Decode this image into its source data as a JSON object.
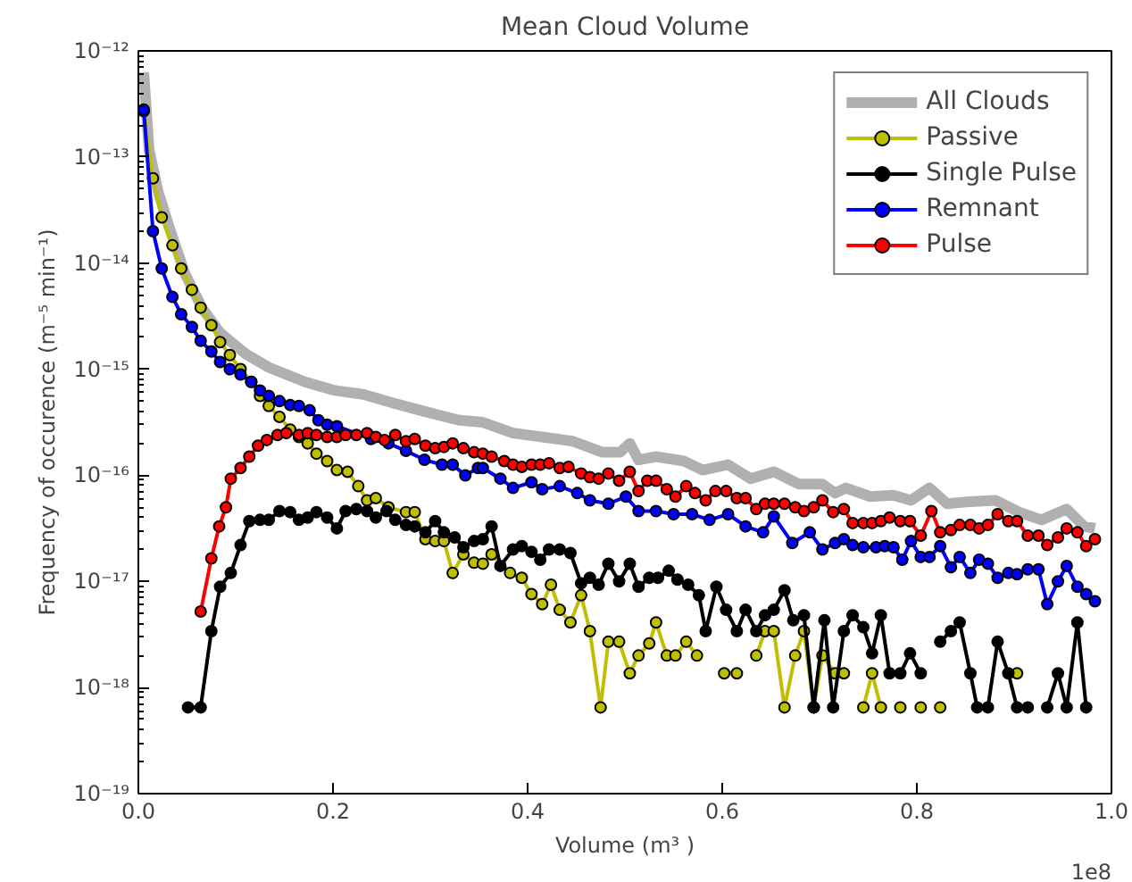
{
  "chart_data": {
    "type": "line",
    "title": "Mean Cloud Volume",
    "xlabel": "Volume (m³ )",
    "ylabel": "Frequency of occurence (m⁻⁵ min⁻¹)",
    "log": "y",
    "grid": false,
    "legend": "top right",
    "xlim": [
      0,
      1
    ],
    "xticks": [
      {
        "value": 0,
        "label": "0.0"
      },
      0.2,
      0.4,
      0.6,
      0.8,
      {
        "value": 1,
        "label": "1.0"
      }
    ],
    "ylim": [
      1e-19,
      1e-12
    ],
    "yticks": [
      {
        "value": 1e-19,
        "label": "10⁻¹⁹"
      },
      {
        "value": 1e-18,
        "label": "10⁻¹⁸"
      },
      {
        "value": 1e-17,
        "label": "10⁻¹⁷"
      },
      {
        "value": 1e-16,
        "label": "10⁻¹⁶"
      },
      {
        "value": 1e-15,
        "label": "10⁻¹⁵"
      },
      {
        "value": 1e-14,
        "label": "10⁻¹⁴"
      },
      {
        "value": 1e-13,
        "label": "10⁻¹³"
      },
      {
        "value": 1e-12,
        "label": "10⁻¹²"
      }
    ],
    "annotations": [
      "1e8"
    ],
    "series": [
      {
        "name": "All Clouds",
        "color": "#b0b0b0",
        "marker": "none",
        "x": [
          0.0055,
          0.011,
          0.02,
          0.033,
          0.048,
          0.066,
          0.084,
          0.11,
          0.134,
          0.171,
          0.202,
          0.231,
          0.262,
          0.294,
          0.33,
          0.354,
          0.385,
          0.415,
          0.446,
          0.477,
          0.495,
          0.505,
          0.514,
          0.532,
          0.561,
          0.58,
          0.606,
          0.629,
          0.653,
          0.679,
          0.703,
          0.716,
          0.727,
          0.752,
          0.776,
          0.794,
          0.813,
          0.831,
          0.85,
          0.881,
          0.905,
          0.928,
          0.954,
          0.972,
          0.983
        ],
        "values": [
          6.3e-13,
          1.17e-13,
          4.8e-14,
          2e-14,
          7.9e-15,
          3.7e-15,
          2.2e-15,
          1.4e-15,
          1.04e-15,
          7.6e-16,
          6.3e-16,
          5.8e-16,
          4.8e-16,
          4e-16,
          3.3e-16,
          3.16e-16,
          2.5e-16,
          2.3e-16,
          2.1e-16,
          1.65e-16,
          1.65e-16,
          2e-16,
          1.4e-16,
          1.5e-16,
          1.36e-16,
          1.12e-16,
          1.26e-16,
          9.3e-17,
          1.08e-16,
          8.25e-17,
          8.25e-17,
          6.8e-17,
          7.6e-17,
          6.3e-17,
          6.5e-17,
          5.8e-17,
          7.6e-17,
          5.4e-17,
          5.6e-17,
          5.8e-17,
          4.5e-17,
          3.8e-17,
          4.8e-17,
          3.3e-17,
          3.16e-17
        ]
      },
      {
        "name": "Passive",
        "color": "#bfbf00",
        "marker": "circle",
        "x": [
          0.0055,
          0.015,
          0.024,
          0.035,
          0.044,
          0.055,
          0.064,
          0.075,
          0.084,
          0.094,
          0.105,
          0.116,
          0.125,
          0.134,
          0.145,
          0.156,
          0.165,
          0.174,
          0.183,
          0.194,
          0.204,
          0.215,
          0.226,
          0.235,
          0.244,
          0.257,
          0.275,
          0.284,
          0.295,
          0.305,
          0.314,
          0.323,
          0.334,
          0.345,
          0.354,
          0.363,
          0.382,
          0.394,
          0.404,
          0.415,
          0.424,
          0.433,
          0.444,
          0.455,
          0.464,
          0.475,
          0.483,
          0.494,
          0.505,
          0.514,
          0.525,
          0.532,
          0.543,
          0.552,
          0.563,
          0.574,
          0.588,
          0.602,
          0.615,
          0.625,
          0.635,
          0.644,
          0.653,
          0.664,
          0.675,
          0.684,
          0.694,
          0.703,
          0.716,
          0.725,
          0.735,
          0.745,
          0.754,
          0.763,
          0.773,
          0.783,
          0.794,
          0.804,
          0.814,
          0.824,
          0.86,
          0.903
        ],
        "values": [
          2.7e-13,
          6.3e-14,
          2.7e-14,
          1.47e-14,
          8.9e-15,
          5.6e-15,
          3.8e-15,
          2.6e-15,
          1.8e-15,
          1.36e-15,
          1e-15,
          7.6e-16,
          5.6e-16,
          4.5e-16,
          3.55e-16,
          2.7e-16,
          2.3e-16,
          2e-16,
          1.6e-16,
          1.36e-16,
          1.12e-16,
          1.08e-16,
          7.9e-17,
          5.8e-17,
          6.1e-17,
          5e-17,
          4.5e-17,
          4.5e-17,
          2.5e-17,
          2.4e-17,
          2.4e-17,
          1.2e-17,
          1.8e-17,
          1.5e-17,
          1.47e-17,
          1.8e-17,
          1.2e-17,
          1.08e-17,
          7.6e-18,
          6.1e-18,
          9.3e-18,
          5.4e-18,
          4.1e-18,
          7.4e-18,
          3.4e-18,
          6.5e-19,
          2.7e-18,
          2.7e-18,
          1.36e-18,
          2e-18,
          2.6e-18,
          4.1e-18,
          2e-18,
          2e-18,
          2.7e-18,
          2e-18,
          null,
          1.36e-18,
          1.36e-18,
          null,
          2e-18,
          3.4e-18,
          3.4e-18,
          6.5e-19,
          2e-18,
          3.4e-18,
          6.5e-19,
          2e-18,
          1.36e-18,
          1.36e-18,
          null,
          6.5e-19,
          1.36e-18,
          6.5e-19,
          null,
          6.5e-19,
          null,
          6.5e-19,
          null,
          6.5e-19,
          null,
          1.36e-18
        ]
      },
      {
        "name": "Single Pulse",
        "color": "#000000",
        "marker": "circle",
        "x": [
          0.051,
          0.064,
          0.075,
          0.084,
          0.095,
          0.105,
          0.114,
          0.125,
          0.134,
          0.145,
          0.156,
          0.165,
          0.174,
          0.183,
          0.194,
          0.204,
          0.213,
          0.224,
          0.235,
          0.244,
          0.255,
          0.264,
          0.275,
          0.284,
          0.295,
          0.305,
          0.314,
          0.325,
          0.334,
          0.345,
          0.354,
          0.363,
          0.372,
          0.385,
          0.394,
          0.404,
          0.413,
          0.422,
          0.433,
          0.444,
          0.455,
          0.464,
          0.473,
          0.483,
          0.494,
          0.505,
          0.514,
          0.525,
          0.534,
          0.545,
          0.554,
          0.565,
          0.576,
          0.583,
          0.594,
          0.604,
          0.615,
          0.624,
          0.635,
          0.644,
          0.653,
          0.664,
          0.673,
          0.684,
          0.694,
          0.705,
          0.714,
          0.725,
          0.734,
          0.745,
          0.754,
          0.763,
          0.772,
          0.783,
          0.793,
          0.804,
          0.814,
          0.824,
          0.835,
          0.844,
          0.855,
          0.862,
          0.873,
          0.883,
          0.894,
          0.903,
          0.914,
          0.924,
          0.934,
          0.945,
          0.954,
          0.965,
          0.974
        ],
        "values": [
          6.5e-19,
          6.5e-19,
          3.4e-18,
          8.9e-18,
          1.2e-17,
          2.2e-17,
          3.7e-17,
          3.8e-17,
          3.8e-17,
          4.6e-17,
          4.5e-17,
          3.8e-17,
          4e-17,
          4.5e-17,
          4e-17,
          3.16e-17,
          4.6e-17,
          4.8e-17,
          4.6e-17,
          4e-17,
          4.6e-17,
          3.8e-17,
          3.4e-17,
          3.3e-17,
          2.9e-17,
          3.7e-17,
          2.9e-17,
          2.6e-17,
          2.1e-17,
          2.4e-17,
          2.5e-17,
          3.3e-17,
          1.4e-17,
          2e-17,
          2.15e-17,
          1.9e-17,
          1.6e-17,
          2e-17,
          2e-17,
          1.85e-17,
          9.6e-18,
          1.08e-17,
          9.3e-18,
          1.47e-17,
          1e-17,
          1.47e-17,
          8.9e-18,
          1.08e-17,
          1.08e-17,
          1.26e-17,
          1.04e-17,
          9.3e-18,
          7.4e-18,
          3.4e-18,
          8.9e-18,
          5.4e-18,
          3.4e-18,
          5.4e-18,
          3.4e-18,
          4.8e-18,
          5.4e-18,
          8.25e-18,
          4.3e-18,
          4.8e-18,
          6.5e-19,
          4.3e-18,
          6.5e-19,
          3.4e-18,
          4.8e-18,
          3.7e-18,
          2.1e-18,
          4.8e-18,
          1.36e-18,
          1.36e-18,
          2.1e-18,
          1.36e-18,
          null,
          2.7e-18,
          3.4e-18,
          4.1e-18,
          1.36e-18,
          6.5e-19,
          6.5e-19,
          2.7e-18,
          1.36e-18,
          6.5e-19,
          6.5e-19,
          null,
          6.5e-19,
          1.36e-18,
          6.5e-19,
          4.1e-18,
          6.5e-19
        ]
      },
      {
        "name": "Remnant",
        "color": "#0000ff",
        "marker": "circle",
        "x": [
          0.0055,
          0.015,
          0.024,
          0.035,
          0.044,
          0.055,
          0.064,
          0.075,
          0.084,
          0.094,
          0.105,
          0.116,
          0.125,
          0.134,
          0.145,
          0.156,
          0.165,
          0.176,
          0.185,
          0.194,
          0.204,
          0.239,
          0.257,
          0.275,
          0.294,
          0.312,
          0.323,
          0.336,
          0.349,
          0.354,
          0.372,
          0.385,
          0.404,
          0.415,
          0.433,
          0.451,
          0.464,
          0.483,
          0.501,
          0.514,
          0.532,
          0.55,
          0.569,
          0.587,
          0.606,
          0.624,
          0.642,
          0.653,
          0.672,
          0.69,
          0.703,
          0.716,
          0.725,
          0.734,
          0.745,
          0.758,
          0.767,
          0.776,
          0.785,
          0.794,
          0.804,
          0.813,
          0.824,
          0.835,
          0.844,
          0.855,
          0.864,
          0.873,
          0.883,
          0.894,
          0.903,
          0.914,
          0.925,
          0.934,
          0.945,
          0.954,
          0.965,
          0.974,
          0.983
        ],
        "values": [
          2.8e-13,
          2e-14,
          8.9e-15,
          4.8e-15,
          3.3e-15,
          2.5e-15,
          1.85e-15,
          1.47e-15,
          1.17e-15,
          1e-15,
          8.9e-16,
          7.6e-16,
          6.3e-16,
          5.6e-16,
          5e-16,
          4.6e-16,
          4.5e-16,
          4.1e-16,
          3.3e-16,
          3e-16,
          2.9e-16,
          2.2e-16,
          2e-16,
          1.7e-16,
          1.4e-16,
          1.26e-16,
          1.26e-16,
          1e-16,
          1.17e-16,
          1.17e-16,
          9.3e-17,
          7.6e-17,
          8.6e-17,
          7.4e-17,
          7.9e-17,
          6.8e-17,
          5.8e-17,
          5.4e-17,
          6.3e-17,
          4.6e-17,
          4.6e-17,
          4.3e-17,
          4.3e-17,
          3.8e-17,
          4.3e-17,
          3.3e-17,
          2.9e-17,
          4.1e-17,
          2.3e-17,
          2.9e-17,
          2e-17,
          2.3e-17,
          2.5e-17,
          2.2e-17,
          2.1e-17,
          2.1e-17,
          2.15e-17,
          2.1e-17,
          1.6e-17,
          2.4e-17,
          1.7e-17,
          1.7e-17,
          2.15e-17,
          1.36e-17,
          1.7e-17,
          1.2e-17,
          1.6e-17,
          1.47e-17,
          1.08e-17,
          1.2e-17,
          1.17e-17,
          1.3e-17,
          1.3e-17,
          6.1e-18,
          1e-17,
          1.4e-17,
          8.9e-18,
          7.6e-18,
          6.5e-18
        ]
      },
      {
        "name": "Pulse",
        "color": "#ff0000",
        "marker": "circle",
        "x": [
          0.064,
          0.075,
          0.083,
          0.09,
          0.095,
          0.105,
          0.114,
          0.123,
          0.132,
          0.143,
          0.152,
          0.165,
          0.174,
          0.183,
          0.194,
          0.204,
          0.213,
          0.224,
          0.235,
          0.244,
          0.253,
          0.264,
          0.275,
          0.284,
          0.295,
          0.305,
          0.314,
          0.323,
          0.334,
          0.345,
          0.354,
          0.363,
          0.376,
          0.385,
          0.394,
          0.404,
          0.413,
          0.422,
          0.433,
          0.442,
          0.455,
          0.464,
          0.473,
          0.483,
          0.494,
          0.505,
          0.514,
          0.523,
          0.532,
          0.543,
          0.552,
          0.563,
          0.572,
          0.583,
          0.593,
          0.604,
          0.615,
          0.624,
          0.635,
          0.644,
          0.653,
          0.664,
          0.675,
          0.684,
          0.694,
          0.703,
          0.714,
          0.725,
          0.734,
          0.745,
          0.754,
          0.763,
          0.772,
          0.783,
          0.793,
          0.804,
          0.815,
          0.824,
          0.835,
          0.844,
          0.855,
          0.864,
          0.873,
          0.883,
          0.894,
          0.903,
          0.914,
          0.925,
          0.934,
          0.945,
          0.954,
          0.965,
          0.974,
          0.983
        ],
        "values": [
          5.2e-18,
          1.65e-17,
          3.3e-17,
          5e-17,
          9.3e-17,
          1.17e-16,
          1.5e-16,
          1.9e-16,
          2.15e-16,
          2.4e-16,
          2.5e-16,
          2.4e-16,
          2.5e-16,
          2.4e-16,
          2.3e-16,
          2.3e-16,
          2.4e-16,
          2.4e-16,
          2.5e-16,
          2.3e-16,
          2.15e-16,
          2.4e-16,
          2.1e-16,
          2.2e-16,
          1.9e-16,
          1.8e-16,
          1.85e-16,
          2e-16,
          1.8e-16,
          1.65e-16,
          1.6e-16,
          1.5e-16,
          1.36e-16,
          1.26e-16,
          1.2e-16,
          1.26e-16,
          1.26e-16,
          1.3e-16,
          1.17e-16,
          1.2e-16,
          1.04e-16,
          9.6e-17,
          9.3e-17,
          1.04e-16,
          8.9e-17,
          1.08e-16,
          7.1e-17,
          8.9e-17,
          8.9e-17,
          7.4e-17,
          6.3e-17,
          7.9e-17,
          6.8e-17,
          5.8e-17,
          7.1e-17,
          7.1e-17,
          6.1e-17,
          6.1e-17,
          4.8e-17,
          5.4e-17,
          5.4e-17,
          5.4e-17,
          5e-17,
          4.6e-17,
          5e-17,
          5.8e-17,
          4.5e-17,
          4.8e-17,
          3.55e-17,
          3.55e-17,
          3.55e-17,
          3.7e-17,
          4e-17,
          3.7e-17,
          3.7e-17,
          2.7e-17,
          4.6e-17,
          2.9e-17,
          3.05e-17,
          3.4e-17,
          3.4e-17,
          3.16e-17,
          3.4e-17,
          4.3e-17,
          3.7e-17,
          3.7e-17,
          2.7e-17,
          2.7e-17,
          2.2e-17,
          2.6e-17,
          3.16e-17,
          2.9e-17,
          2.15e-17,
          2.5e-17
        ]
      }
    ]
  }
}
